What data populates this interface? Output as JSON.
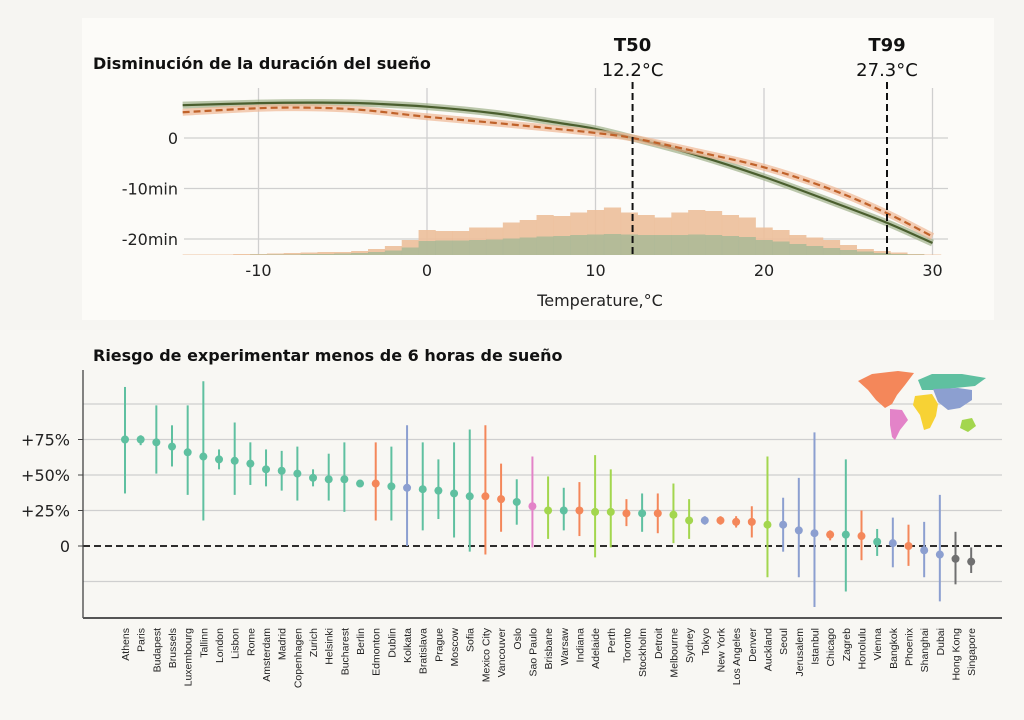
{
  "chart_data": [
    {
      "type": "line",
      "title": "Disminución de la duración del sueño",
      "xlabel": "Temperature,°C",
      "ylabel": "",
      "xlim": [
        -14.6,
        30.8
      ],
      "ylim": [
        -23,
        10
      ],
      "x_ticks": [
        "-10",
        "0",
        "10",
        "20",
        "30"
      ],
      "x_tick_values": [
        -10,
        0,
        10,
        20,
        30
      ],
      "y_ticks": [
        "0",
        "-10min",
        "-20min"
      ],
      "y_tick_values": [
        0,
        -10,
        -20
      ],
      "grid": true,
      "series": [
        {
          "style": "solid",
          "color": "#4a5e2e",
          "band_color": "#9fb08a",
          "x": [
            -14.5,
            -10,
            -7,
            -4,
            0,
            4,
            8,
            10,
            12.2,
            16,
            20,
            24,
            27.3,
            30
          ],
          "y": [
            6.5,
            6.9,
            7.0,
            6.9,
            6.2,
            4.9,
            2.9,
            1.8,
            0,
            -3.4,
            -7.7,
            -12.6,
            -16.8,
            -20.8
          ]
        },
        {
          "style": "dashed",
          "color": "#c0622a",
          "band_color": "#f0b895",
          "x": [
            -14.5,
            -10,
            -7,
            -4,
            0,
            4,
            8,
            10,
            12.2,
            16,
            20,
            24,
            27.3,
            30
          ],
          "y": [
            5.1,
            5.9,
            6.0,
            5.6,
            4.2,
            3.0,
            1.7,
            1.0,
            0,
            -2.7,
            -5.8,
            -10.2,
            -14.9,
            -19.5
          ]
        }
      ],
      "histograms": [
        {
          "color": "#ecbf9a",
          "bin_start": -14,
          "bin_width": 1,
          "values": [
            0.01,
            0.01,
            0.01,
            0.02,
            0.02,
            0.03,
            0.04,
            0.05,
            0.06,
            0.06,
            0.08,
            0.12,
            0.18,
            0.3,
            0.5,
            0.48,
            0.48,
            0.55,
            0.55,
            0.65,
            0.7,
            0.8,
            0.78,
            0.85,
            0.9,
            0.95,
            0.85,
            0.8,
            0.75,
            0.85,
            0.9,
            0.88,
            0.8,
            0.75,
            0.55,
            0.5,
            0.4,
            0.35,
            0.3,
            0.2,
            0.12,
            0.08,
            0.05,
            0.02,
            0.01
          ]
        },
        {
          "color": "#a9b896",
          "bin_start": -14,
          "bin_width": 1,
          "values": [
            0,
            0,
            0,
            0,
            0.01,
            0.01,
            0.01,
            0.02,
            0.02,
            0.03,
            0.04,
            0.06,
            0.09,
            0.15,
            0.28,
            0.29,
            0.29,
            0.3,
            0.31,
            0.33,
            0.35,
            0.37,
            0.38,
            0.4,
            0.41,
            0.42,
            0.41,
            0.4,
            0.4,
            0.4,
            0.41,
            0.4,
            0.38,
            0.36,
            0.3,
            0.27,
            0.22,
            0.18,
            0.14,
            0.1,
            0.07,
            0.04,
            0.02,
            0.01,
            0
          ]
        }
      ],
      "annotations": [
        {
          "label": "T50",
          "value_text": "12.2°C",
          "x": 12.2
        },
        {
          "label": "T99",
          "value_text": "27.3°C",
          "x": 27.3
        }
      ]
    },
    {
      "type": "scatter",
      "subtype": "point-with-error-bars",
      "title": "Riesgo de experimentar menos de 6 horas de sueño",
      "ylim": [
        -35,
        125
      ],
      "y_ticks": [
        "+75%",
        "+50%",
        "+25%",
        "0"
      ],
      "y_tick_values": [
        75,
        50,
        25,
        0
      ],
      "gridlines": [
        100,
        75,
        50,
        25,
        -25
      ],
      "reference_line": 0,
      "grid": true,
      "region_colors": {
        "europe": "#5fc0a0",
        "north_america": "#f4875a",
        "asia": "#8c9fd0",
        "south_america": "#e383c8",
        "oceania": "#a3d64e",
        "africa": "#f7d234",
        "other": "#707070"
      },
      "legend": "world map, top-right",
      "categories": [
        "Athens",
        "Paris",
        "Budapest",
        "Brussels",
        "Luxembourg",
        "Tallinn",
        "London",
        "Lisbon",
        "Rome",
        "Amsterdam",
        "Madrid",
        "Copenhagen",
        "Zurich",
        "Helsinki",
        "Bucharest",
        "Berlin",
        "Edmonton",
        "Dublin",
        "Kolkata",
        "Bratislava",
        "Prague",
        "Moscow",
        "Sofia",
        "Mexico City",
        "Vancouver",
        "Oslo",
        "Sao Paulo",
        "Brisbane",
        "Warsaw",
        "Indiana",
        "Adelaide",
        "Perth",
        "Toronto",
        "Stockholm",
        "Detroit",
        "Melbourne",
        "Sydney",
        "Tokyo",
        "New York",
        "Los Angeles",
        "Denver",
        "Auckland",
        "Seoul",
        "Jerusalem",
        "Istanbul",
        "Chicago",
        "Zagreb",
        "Honolulu",
        "Vienna",
        "Bangkok",
        "Phoenix",
        "Shanghai",
        "Dubai",
        "Hong Kong",
        "Singapore"
      ],
      "regions": [
        "europe",
        "europe",
        "europe",
        "europe",
        "europe",
        "europe",
        "europe",
        "europe",
        "europe",
        "europe",
        "europe",
        "europe",
        "europe",
        "europe",
        "europe",
        "europe",
        "north_america",
        "europe",
        "asia",
        "europe",
        "europe",
        "europe",
        "europe",
        "north_america",
        "north_america",
        "europe",
        "south_america",
        "oceania",
        "europe",
        "north_america",
        "oceania",
        "oceania",
        "north_america",
        "europe",
        "north_america",
        "oceania",
        "oceania",
        "asia",
        "north_america",
        "north_america",
        "north_america",
        "oceania",
        "asia",
        "asia",
        "asia",
        "north_america",
        "europe",
        "north_america",
        "europe",
        "asia",
        "north_america",
        "asia",
        "asia",
        "other",
        "other"
      ],
      "values": [
        75,
        75,
        73,
        70,
        66,
        63,
        61,
        60,
        58,
        54,
        53,
        51,
        48,
        47,
        47,
        44,
        44,
        42,
        41,
        40,
        39,
        37,
        35,
        35,
        33,
        31,
        28,
        25,
        25,
        25,
        24,
        24,
        23,
        23,
        23,
        22,
        18,
        18,
        18,
        17,
        17,
        15,
        15,
        11,
        9,
        8,
        8,
        7,
        3,
        2,
        0,
        -3,
        -6,
        -9,
        -11
      ],
      "lower": [
        37,
        71,
        51,
        56,
        36,
        18,
        54,
        36,
        43,
        42,
        39,
        32,
        42,
        32,
        24,
        42,
        18,
        18,
        0,
        11,
        19,
        6,
        -4,
        -6,
        10,
        15,
        -1,
        5,
        11,
        7,
        -8,
        -1,
        14,
        10,
        9,
        2,
        5,
        15,
        15,
        13,
        6,
        -22,
        -4,
        -22,
        -43,
        4,
        -32,
        -10,
        -7,
        -15,
        -14,
        -22,
        -39,
        -27,
        -19
      ],
      "upper": [
        112,
        78,
        99,
        85,
        99,
        116,
        68,
        87,
        73,
        68,
        67,
        70,
        54,
        65,
        73,
        46,
        73,
        70,
        85,
        73,
        61,
        73,
        82,
        85,
        58,
        47,
        63,
        49,
        41,
        45,
        64,
        54,
        33,
        37,
        37,
        44,
        33,
        21,
        21,
        21,
        28,
        63,
        34,
        48,
        80,
        11,
        61,
        25,
        12,
        20,
        15,
        17,
        36,
        10,
        -1
      ]
    }
  ]
}
